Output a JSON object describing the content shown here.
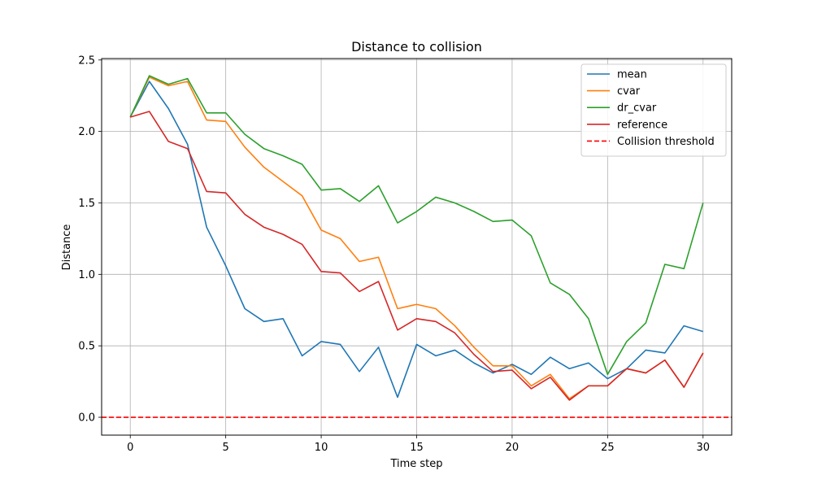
{
  "chart_data": {
    "type": "line",
    "title": "Distance to collision",
    "xlabel": "Time step",
    "ylabel": "Distance",
    "xlim": [
      -1.5,
      31.5
    ],
    "ylim": [
      -0.125,
      2.51
    ],
    "xticks": [
      0,
      5,
      10,
      15,
      20,
      25,
      30
    ],
    "yticks": [
      0.0,
      0.5,
      1.0,
      1.5,
      2.0,
      2.5
    ],
    "xtick_labels": [
      "0",
      "5",
      "10",
      "15",
      "20",
      "25",
      "30"
    ],
    "ytick_labels": [
      "0.0",
      "0.5",
      "1.0",
      "1.5",
      "2.0",
      "2.5"
    ],
    "grid": true,
    "legend_position": "top-right",
    "x": [
      0,
      1,
      2,
      3,
      4,
      5,
      6,
      7,
      8,
      9,
      10,
      11,
      12,
      13,
      14,
      15,
      16,
      17,
      18,
      19,
      20,
      21,
      22,
      23,
      24,
      25,
      26,
      27,
      28,
      29,
      30
    ],
    "series": [
      {
        "name": "mean",
        "color": "#1f77b4",
        "style": "solid",
        "values": [
          2.1,
          2.35,
          2.16,
          1.91,
          1.33,
          1.06,
          0.76,
          0.67,
          0.69,
          0.43,
          0.53,
          0.51,
          0.32,
          0.49,
          0.14,
          0.51,
          0.43,
          0.47,
          0.38,
          0.31,
          0.37,
          0.3,
          0.42,
          0.34,
          0.38,
          0.27,
          0.34,
          0.47,
          0.45,
          0.64,
          0.6
        ]
      },
      {
        "name": "cvar",
        "color": "#ff7f0e",
        "style": "solid",
        "values": [
          2.1,
          2.38,
          2.32,
          2.35,
          2.08,
          2.07,
          1.89,
          1.75,
          1.65,
          1.55,
          1.31,
          1.25,
          1.09,
          1.12,
          0.76,
          0.79,
          0.76,
          0.64,
          0.49,
          0.36,
          0.36,
          0.22,
          0.3,
          0.13,
          0.22,
          0.22,
          0.34,
          0.31,
          0.4,
          0.21,
          0.45
        ]
      },
      {
        "name": "dr_cvar",
        "color": "#2ca02c",
        "style": "solid",
        "values": [
          2.1,
          2.39,
          2.33,
          2.37,
          2.13,
          2.13,
          1.98,
          1.88,
          1.83,
          1.77,
          1.59,
          1.6,
          1.51,
          1.62,
          1.36,
          1.44,
          1.54,
          1.5,
          1.44,
          1.37,
          1.38,
          1.27,
          0.94,
          0.86,
          0.69,
          0.3,
          0.53,
          0.66,
          1.07,
          1.04,
          1.5
        ]
      },
      {
        "name": "reference",
        "color": "#d62728",
        "style": "solid",
        "values": [
          2.1,
          2.14,
          1.93,
          1.88,
          1.58,
          1.57,
          1.42,
          1.33,
          1.28,
          1.21,
          1.02,
          1.01,
          0.88,
          0.95,
          0.61,
          0.69,
          0.67,
          0.59,
          0.44,
          0.32,
          0.33,
          0.2,
          0.28,
          0.12,
          0.22,
          0.22,
          0.34,
          0.31,
          0.4,
          0.21,
          0.45
        ]
      },
      {
        "name": "Collision threshold",
        "color": "#ff0000",
        "style": "dashed",
        "constant": 0.0
      }
    ]
  }
}
